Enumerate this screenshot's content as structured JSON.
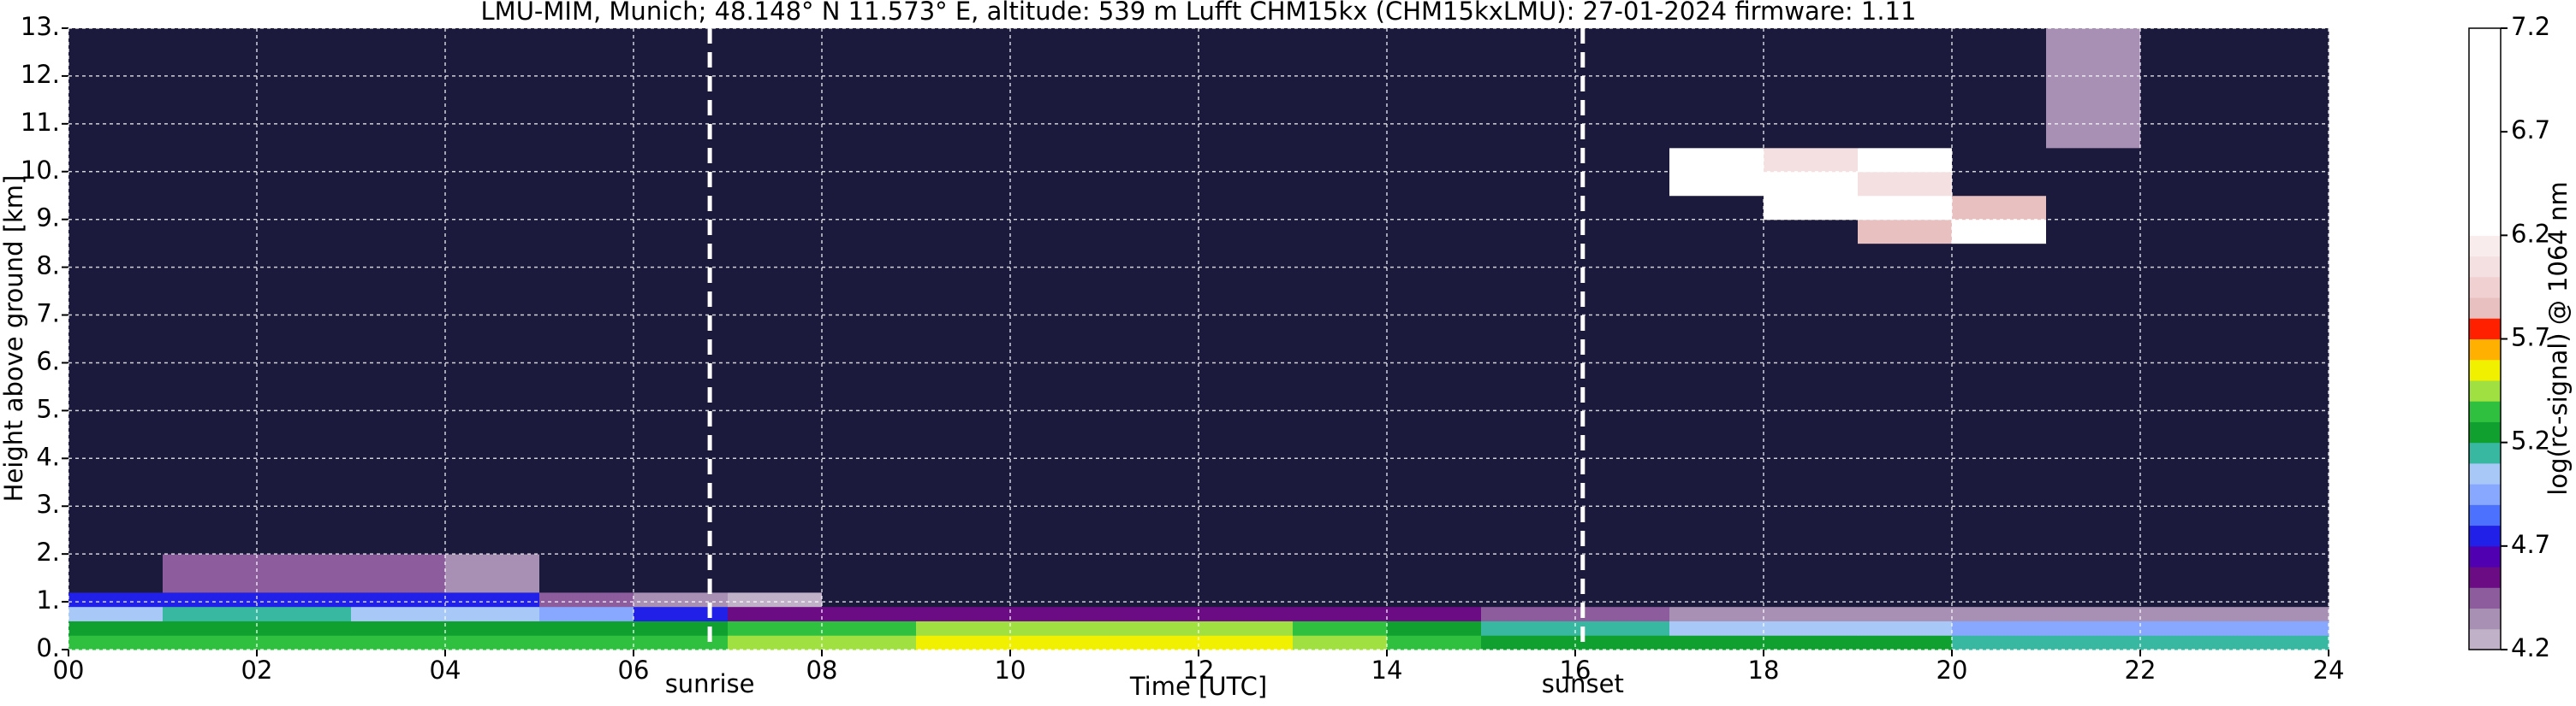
{
  "chart_data": {
    "type": "heatmap",
    "title": "LMU-MIM, Munich; 48.148° N 11.573° E, altitude: 539 m    Lufft CHM15kx (CHM15kxLMU): 27-01-2024    firmware: 1.11",
    "x_label": "Time [UTC]",
    "y_label": "Height above ground [km]",
    "xlim": [
      0,
      24
    ],
    "xticks": [
      {
        "value": 0,
        "label": "00"
      },
      {
        "value": 2,
        "label": "02"
      },
      {
        "value": 4,
        "label": "04"
      },
      {
        "value": 6,
        "label": "06"
      },
      {
        "value": 8,
        "label": "08"
      },
      10,
      12,
      14,
      16,
      18,
      20,
      22,
      24
    ],
    "ylim": [
      0,
      13
    ],
    "yticks": [
      {
        "value": 0,
        "label": "0."
      },
      {
        "value": 1,
        "label": "1."
      },
      {
        "value": 2,
        "label": "2."
      },
      {
        "value": 3,
        "label": "3."
      },
      {
        "value": 4,
        "label": "4."
      },
      {
        "value": 5,
        "label": "5."
      },
      {
        "value": 6,
        "label": "6."
      },
      {
        "value": 7,
        "label": "7."
      },
      {
        "value": 8,
        "label": "8."
      },
      {
        "value": 9,
        "label": "9."
      },
      {
        "value": 10,
        "label": "10."
      },
      {
        "value": 11,
        "label": "11."
      },
      {
        "value": 12,
        "label": "12."
      },
      {
        "value": 13,
        "label": "13."
      }
    ],
    "grid": true,
    "x_edges": [
      0,
      1,
      2,
      3,
      4,
      5,
      6,
      7,
      8,
      9,
      10,
      11,
      12,
      13,
      14,
      15,
      16,
      17,
      18,
      19,
      20,
      21,
      22,
      23,
      24
    ],
    "y_edges": [
      0,
      0.3,
      0.6,
      0.9,
      1.2,
      2,
      8.5,
      9,
      9.5,
      10,
      10.5,
      13
    ],
    "z": [
      [
        5.3,
        5.3,
        5.3,
        5.3,
        5.3,
        5.35,
        5.35,
        5.4,
        5.45,
        5.5,
        5.55,
        5.5,
        5.55,
        5.4,
        5.3,
        5.25,
        5.2,
        5.2,
        5.2,
        5.2,
        5.15,
        5.15,
        5.1,
        5.1
      ],
      [
        5.25,
        5.25,
        5.25,
        5.2,
        5.2,
        5.2,
        5.25,
        5.3,
        5.35,
        5.4,
        5.45,
        5.45,
        5.45,
        5.3,
        5.2,
        5.15,
        5.1,
        5.05,
        5.0,
        5.0,
        4.95,
        4.95,
        4.9,
        4.9
      ],
      [
        5.05,
        5.1,
        5.1,
        5.05,
        5.0,
        4.9,
        4.7,
        4.55,
        4.5,
        4.5,
        4.5,
        4.5,
        4.5,
        4.5,
        4.5,
        4.45,
        4.4,
        4.35,
        4.35,
        4.35,
        4.35,
        4.3,
        4.3,
        4.3
      ],
      [
        4.75,
        4.7,
        4.7,
        4.7,
        4.7,
        4.4,
        4.3,
        4.2,
        4.15,
        4.1,
        4.1,
        4.1,
        4.1,
        4.1,
        4.1,
        4.1,
        4.1,
        4.1,
        4.1,
        4.1,
        4.1,
        4.1,
        4.1,
        4.1
      ],
      [
        4.1,
        4.4,
        4.45,
        4.4,
        4.3,
        4.1,
        4.1,
        4.1,
        4.1,
        4.1,
        4.1,
        4.1,
        4.1,
        4.1,
        4.1,
        4.1,
        4.1,
        4.1,
        4.1,
        4.1,
        4.1,
        4.1,
        4.1,
        4.1
      ],
      [
        4.0,
        4.0,
        4.0,
        4.0,
        4.0,
        4.0,
        4.0,
        4.0,
        4.0,
        4.0,
        4.0,
        4.0,
        4.0,
        4.0,
        4.0,
        4.0,
        4.0,
        4.0,
        4.0,
        4.0,
        4.0,
        4.0,
        4.0,
        4.0
      ],
      [
        4.0,
        4.0,
        4.0,
        4.0,
        4.0,
        4.0,
        4.0,
        4.0,
        4.0,
        4.0,
        4.0,
        4.0,
        4.0,
        4.0,
        4.0,
        4.0,
        4.0,
        4.0,
        4.0,
        5.8,
        6.4,
        4.0,
        4.0,
        4.0
      ],
      [
        4.0,
        4.0,
        4.0,
        4.0,
        4.0,
        4.0,
        4.0,
        4.0,
        4.0,
        4.0,
        4.0,
        4.0,
        4.0,
        4.0,
        4.0,
        4.0,
        4.0,
        4.0,
        6.5,
        6.2,
        5.8,
        4.0,
        4.0,
        4.0
      ],
      [
        4.0,
        4.0,
        4.0,
        4.0,
        4.0,
        4.0,
        4.0,
        4.0,
        4.0,
        4.0,
        4.0,
        4.0,
        4.0,
        4.0,
        4.0,
        4.0,
        4.0,
        6.5,
        6.3,
        6.0,
        4.0,
        4.0,
        4.0,
        4.0
      ],
      [
        4.0,
        4.0,
        4.0,
        4.0,
        4.0,
        4.0,
        4.0,
        4.0,
        4.0,
        4.0,
        4.0,
        4.0,
        4.0,
        4.0,
        4.0,
        4.0,
        4.0,
        6.3,
        6.0,
        6.2,
        4.0,
        4.0,
        4.0,
        4.0
      ],
      [
        4.0,
        4.0,
        4.0,
        4.0,
        4.0,
        4.0,
        4.0,
        4.0,
        4.0,
        4.0,
        4.0,
        4.0,
        4.0,
        4.0,
        4.0,
        4.0,
        4.0,
        4.0,
        4.0,
        4.0,
        4.0,
        4.3,
        4.0,
        4.0
      ]
    ],
    "under_color": "#1c1a3c",
    "colorbar": {
      "label": "log(rc-signal) @ 1064 nm",
      "lim": [
        4.2,
        7.2
      ],
      "ticks": [
        4.2,
        4.7,
        5.2,
        5.7,
        6.2,
        6.7,
        7.2
      ],
      "levels": [
        4.2,
        4.3,
        4.4,
        4.5,
        4.6,
        4.7,
        4.8,
        4.9,
        5.0,
        5.1,
        5.2,
        5.3,
        5.4,
        5.5,
        5.6,
        5.7,
        5.8,
        5.9,
        6.0,
        6.1,
        6.2,
        7.2
      ],
      "colors": [
        "#c0b0c8",
        "#a890b4",
        "#8c5c9c",
        "#6c0c84",
        "#5000b0",
        "#2020e8",
        "#4c70ff",
        "#88a8ff",
        "#a8c8f8",
        "#38b8a0",
        "#10a030",
        "#30c040",
        "#a0e040",
        "#f0f000",
        "#ffb000",
        "#ff2000",
        "#e8c0c0",
        "#f0d0d0",
        "#f4e0e0",
        "#f8ecec",
        "#ffffff"
      ]
    },
    "annotations": [
      {
        "x": 6.81,
        "text": "sunrise"
      },
      {
        "x": 16.08,
        "text": "sunset"
      }
    ]
  }
}
